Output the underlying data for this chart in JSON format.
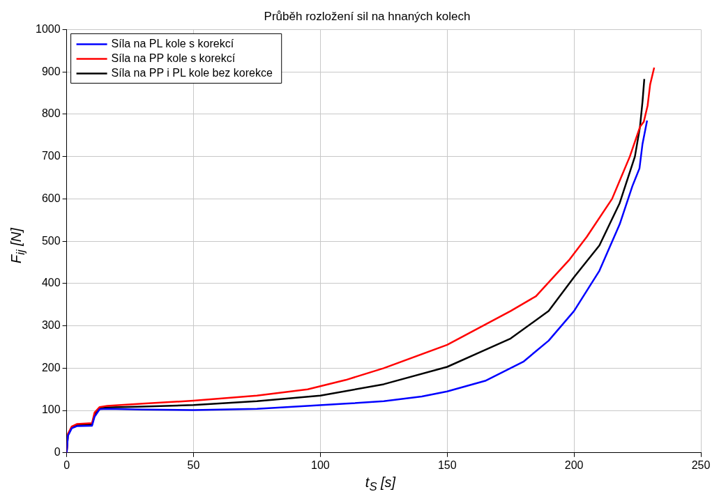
{
  "chart_data": {
    "type": "line",
    "title": "Průběh rozložení sil na hnaných kolech",
    "xlabel": "t$_{S}$ [s]",
    "ylabel": "F$_{ij}$ [N]",
    "xlim": [
      0,
      250
    ],
    "xticks": [
      0,
      50,
      100,
      150,
      200,
      250
    ],
    "ylim": [
      0,
      1000
    ],
    "yticks": [
      0,
      100,
      200,
      300,
      400,
      500,
      600,
      700,
      800,
      900,
      1000
    ],
    "grid": true,
    "legend": "top left",
    "marker": "none",
    "line_style": "solid",
    "series": [
      {
        "name": "Síla na PL kole s korekcí",
        "color": "#0000ff",
        "x": [
          0,
          0.5,
          2,
          4,
          10,
          11,
          13,
          16,
          30,
          50,
          75,
          95,
          110,
          125,
          140,
          150,
          165,
          180,
          190,
          200,
          210,
          218,
          223,
          225.8,
          227,
          228.8
        ],
        "values": [
          0,
          40,
          58,
          63,
          64,
          85,
          103,
          104,
          102,
          101,
          104,
          111,
          116,
          122,
          133,
          145,
          170,
          215,
          265,
          335,
          430,
          540,
          630,
          672,
          730,
          785
        ]
      },
      {
        "name": "Síla na PP kole s korekcí",
        "color": "#ff0000",
        "x": [
          0,
          0.5,
          2,
          4,
          10,
          11,
          13,
          16,
          30,
          50,
          75,
          95,
          110,
          125,
          150,
          175,
          185,
          198,
          205,
          215,
          222,
          226,
          227.5,
          229,
          230,
          231.6
        ],
        "values": [
          0,
          45,
          62,
          68,
          70,
          95,
          108,
          111,
          116,
          123,
          135,
          150,
          172,
          200,
          255,
          335,
          370,
          455,
          510,
          600,
          700,
          770,
          782,
          820,
          870,
          910
        ]
      },
      {
        "name": "Síla na PP i PL kole bez korekce",
        "color": "#000000",
        "x": [
          0,
          0.5,
          2,
          4,
          10,
          11,
          13,
          16,
          30,
          50,
          75,
          100,
          125,
          150,
          175,
          190,
          200,
          210,
          218,
          224,
          226,
          227,
          227.7
        ],
        "values": [
          0,
          42,
          60,
          65,
          67,
          90,
          105,
          107,
          109,
          113,
          122,
          135,
          162,
          203,
          270,
          335,
          415,
          490,
          590,
          700,
          770,
          830,
          883
        ]
      }
    ]
  }
}
